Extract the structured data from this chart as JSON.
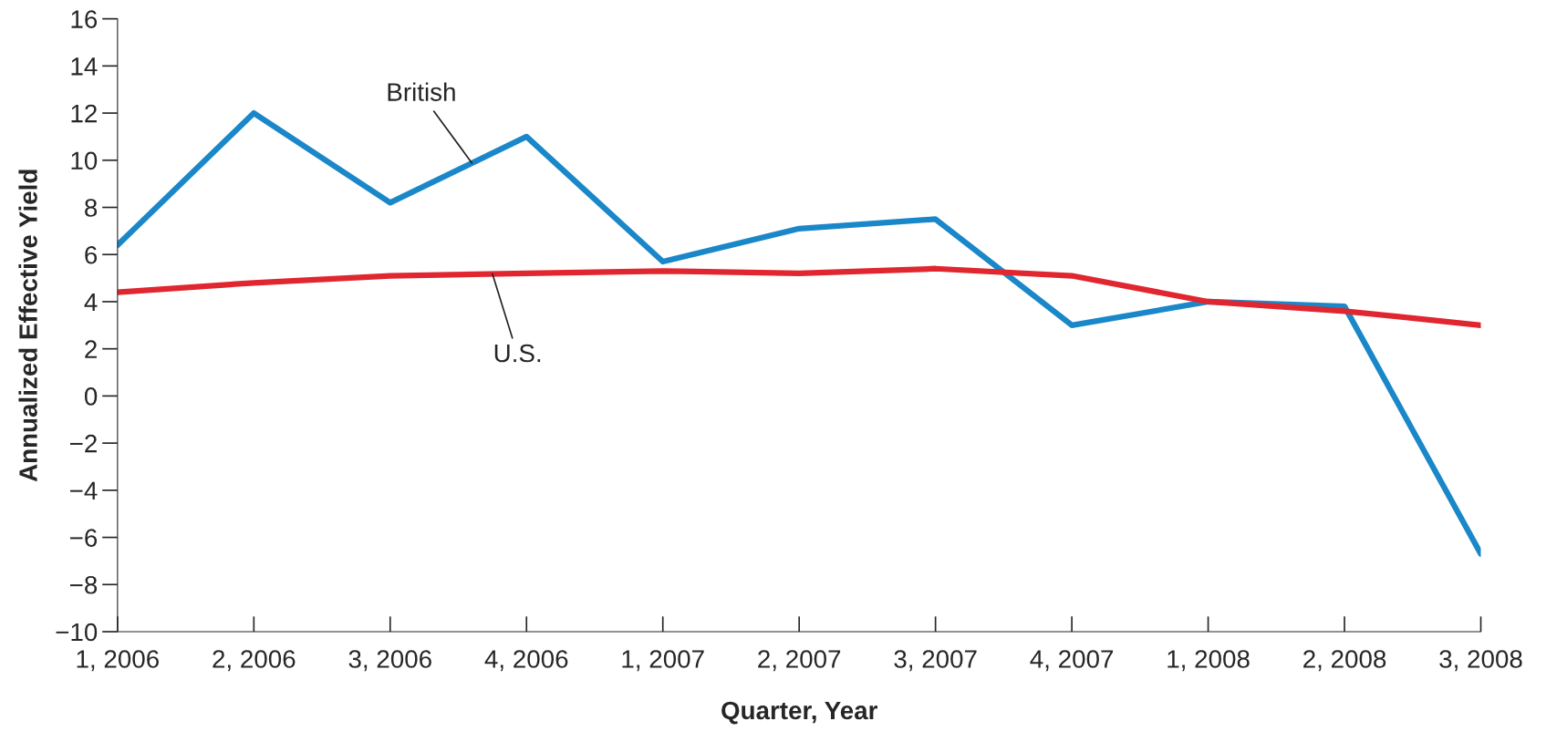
{
  "chart_data": {
    "type": "line",
    "xlabel": "Quarter, Year",
    "ylabel": "Annualized Effective Yield",
    "categories": [
      "1, 2006",
      "2, 2006",
      "3, 2006",
      "4, 2006",
      "1, 2007",
      "2, 2007",
      "3, 2007",
      "4, 2007",
      "1, 2008",
      "2, 2008",
      "3, 2008"
    ],
    "series": [
      {
        "name": "British",
        "color": "#1a87c9",
        "values": [
          6.4,
          12.0,
          8.2,
          11.0,
          5.7,
          7.1,
          7.5,
          3.0,
          4.0,
          3.8,
          -6.7
        ]
      },
      {
        "name": "U.S.",
        "color": "#e0262f",
        "values": [
          4.4,
          4.8,
          5.1,
          5.2,
          5.3,
          5.2,
          5.4,
          5.1,
          4.0,
          3.6,
          3.0
        ]
      }
    ],
    "ylim": [
      -10,
      16
    ],
    "yticks": [
      {
        "value": -10,
        "label": "−10"
      },
      {
        "value": -8,
        "label": "−8"
      },
      {
        "value": -6,
        "label": "−6"
      },
      {
        "value": -4,
        "label": "−4"
      },
      {
        "value": -2,
        "label": "−2"
      },
      0,
      2,
      4,
      6,
      8,
      10,
      12,
      14,
      16
    ],
    "grid": false,
    "legend": false,
    "marker": "none",
    "line_style": "solid"
  }
}
